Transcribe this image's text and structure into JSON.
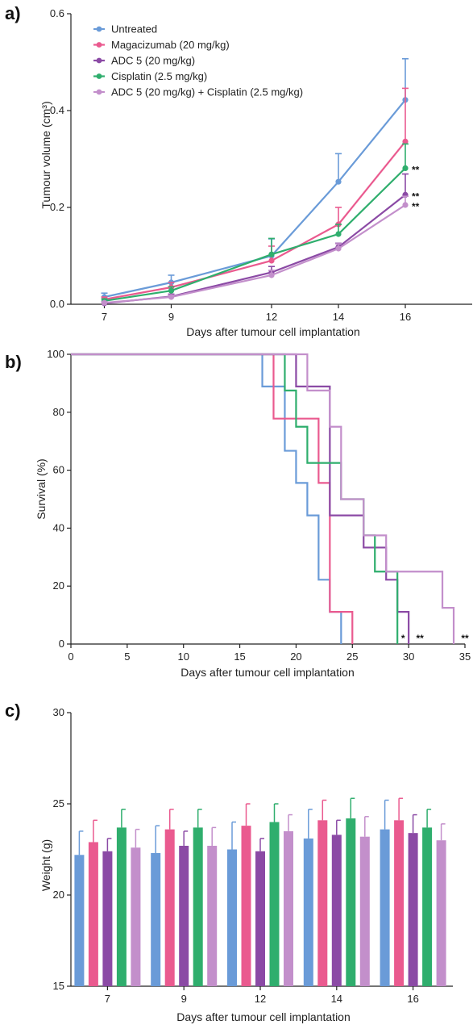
{
  "colors": {
    "untreated": "#6a9bd8",
    "magacizumab": "#ea5a8f",
    "adc5": "#8b4aa5",
    "cisplatin": "#2fae6d",
    "combo": "#c38fcb"
  },
  "chart_data": [
    {
      "panel": "a)",
      "type": "line",
      "xlabel": "Days after tumour cell implantation",
      "ylabel": "Tumour volume (cm³)",
      "x": [
        7,
        9,
        12,
        14,
        16
      ],
      "xlim": [
        6,
        18
      ],
      "ylim": [
        0,
        0.6
      ],
      "yticks": [
        "0.0",
        "0.2",
        "0.4",
        "0.6"
      ],
      "series": [
        {
          "name": "Untreated",
          "color": "#6a9bd8",
          "values": [
            0.015,
            0.045,
            0.1,
            0.253,
            0.422
          ],
          "err": [
            0.008,
            0.015,
            0.035,
            0.058,
            0.085
          ]
        },
        {
          "name": "Magacizumab  (20 mg/kg)",
          "color": "#ea5a8f",
          "values": [
            0.01,
            0.035,
            0.09,
            0.165,
            0.336
          ],
          "err": [
            0.005,
            0.01,
            0.03,
            0.035,
            0.11
          ]
        },
        {
          "name": "ADC 5 (20 mg/kg)",
          "color": "#8b4aa5",
          "values": [
            0.002,
            0.016,
            0.066,
            0.118,
            0.226
          ],
          "err": [
            0.003,
            0.005,
            0.012,
            0.008,
            0.043
          ]
        },
        {
          "name": "Cisplatin  (2.5 mg/kg)",
          "color": "#2fae6d",
          "values": [
            0.007,
            0.028,
            0.103,
            0.145,
            0.281
          ],
          "err": [
            0.004,
            0.008,
            0.033,
            0.02,
            0.05
          ]
        },
        {
          "name": "ADC 5 (20 mg/kg) + Cisplatin (2.5 mg/kg)",
          "color": "#c38fcb",
          "values": [
            0.003,
            0.015,
            0.06,
            0.115,
            0.205
          ],
          "err": [
            0.002,
            0.004,
            0.01,
            0.01,
            0.018
          ]
        }
      ],
      "annotations": [
        {
          "text": "**",
          "at_series": "Cisplatin  (2.5 mg/kg)"
        },
        {
          "text": "**",
          "at_series": "ADC 5 (20 mg/kg)"
        },
        {
          "text": "**",
          "at_series": "ADC 5 (20 mg/kg) + Cisplatin (2.5 mg/kg)"
        }
      ]
    },
    {
      "panel": "b)",
      "type": "line",
      "subtype": "survival-step",
      "xlabel": "Days after tumour cell implantation",
      "ylabel": "Survival (%)",
      "xlim": [
        0,
        35
      ],
      "ylim": [
        0,
        100
      ],
      "xticks": [
        "0",
        "5",
        "10",
        "15",
        "20",
        "25",
        "30",
        "35"
      ],
      "yticks": [
        "0",
        "20",
        "40",
        "60",
        "80",
        "100"
      ],
      "series": [
        {
          "name": "Untreated",
          "color": "#6a9bd8",
          "steps": [
            [
              0,
              100
            ],
            [
              17,
              88.9
            ],
            [
              19,
              66.7
            ],
            [
              20,
              55.6
            ],
            [
              21,
              44.4
            ],
            [
              22,
              22.2
            ],
            [
              23,
              11.1
            ],
            [
              24,
              0
            ]
          ]
        },
        {
          "name": "Magacizumab  (20 mg/kg)",
          "color": "#ea5a8f",
          "steps": [
            [
              0,
              100
            ],
            [
              18,
              77.8
            ],
            [
              22,
              55.6
            ],
            [
              23,
              11.1
            ],
            [
              25,
              0
            ]
          ]
        },
        {
          "name": "ADC 5 (20 mg/kg)",
          "color": "#8b4aa5",
          "steps": [
            [
              0,
              100
            ],
            [
              20,
              88.9
            ],
            [
              23,
              44.4
            ],
            [
              26,
              33.3
            ],
            [
              28,
              22.2
            ],
            [
              29,
              11.1
            ],
            [
              30,
              0
            ]
          ]
        },
        {
          "name": "Cisplatin  (2.5 mg/kg)",
          "color": "#2fae6d",
          "steps": [
            [
              0,
              100
            ],
            [
              19,
              87.5
            ],
            [
              20,
              75
            ],
            [
              21,
              62.5
            ],
            [
              24,
              50
            ],
            [
              26,
              37.5
            ],
            [
              27,
              25
            ],
            [
              29,
              0
            ]
          ]
        },
        {
          "name": "ADC 5 (20 mg/kg) + Cisplatin (2.5 mg/kg)",
          "color": "#c38fcb",
          "steps": [
            [
              0,
              100
            ],
            [
              21,
              87.5
            ],
            [
              23,
              75
            ],
            [
              24,
              50
            ],
            [
              26,
              37.5
            ],
            [
              28,
              25
            ],
            [
              33,
              12.5
            ],
            [
              34,
              0
            ]
          ]
        }
      ],
      "annotations": [
        {
          "text": "*",
          "x": 29.5
        },
        {
          "text": "**",
          "x": 31
        },
        {
          "text": "**",
          "x": 35
        }
      ]
    },
    {
      "panel": "c)",
      "type": "bar",
      "xlabel": "Days after tumour cell implantation",
      "ylabel": "Weight (g)",
      "categories": [
        "7",
        "9",
        "12",
        "14",
        "16"
      ],
      "ylim": [
        15,
        30
      ],
      "yticks": [
        "15",
        "20",
        "25",
        "30"
      ],
      "series": [
        {
          "name": "Untreated",
          "color": "#6a9bd8",
          "values": [
            22.2,
            22.3,
            22.5,
            23.1,
            23.6
          ],
          "err": [
            1.3,
            1.5,
            1.5,
            1.6,
            1.6
          ]
        },
        {
          "name": "Magacizumab  (20 mg/kg)",
          "color": "#ea5a8f",
          "values": [
            22.9,
            23.6,
            23.8,
            24.1,
            24.1
          ],
          "err": [
            1.2,
            1.1,
            1.2,
            1.1,
            1.2
          ]
        },
        {
          "name": "ADC 5 (20 mg/kg)",
          "color": "#8b4aa5",
          "values": [
            22.4,
            22.7,
            22.4,
            23.3,
            23.4
          ],
          "err": [
            0.7,
            0.8,
            0.7,
            0.8,
            1.0
          ]
        },
        {
          "name": "Cisplatin  (2.5 mg/kg)",
          "color": "#2fae6d",
          "values": [
            23.7,
            23.7,
            24.0,
            24.2,
            23.7
          ],
          "err": [
            1.0,
            1.0,
            1.0,
            1.1,
            1.0
          ]
        },
        {
          "name": "ADC 5 (20 mg/kg) + Cisplatin (2.5 mg/kg)",
          "color": "#c38fcb",
          "values": [
            22.6,
            22.7,
            23.5,
            23.2,
            23.0
          ],
          "err": [
            1.0,
            1.0,
            0.9,
            1.1,
            0.9
          ]
        }
      ]
    }
  ]
}
